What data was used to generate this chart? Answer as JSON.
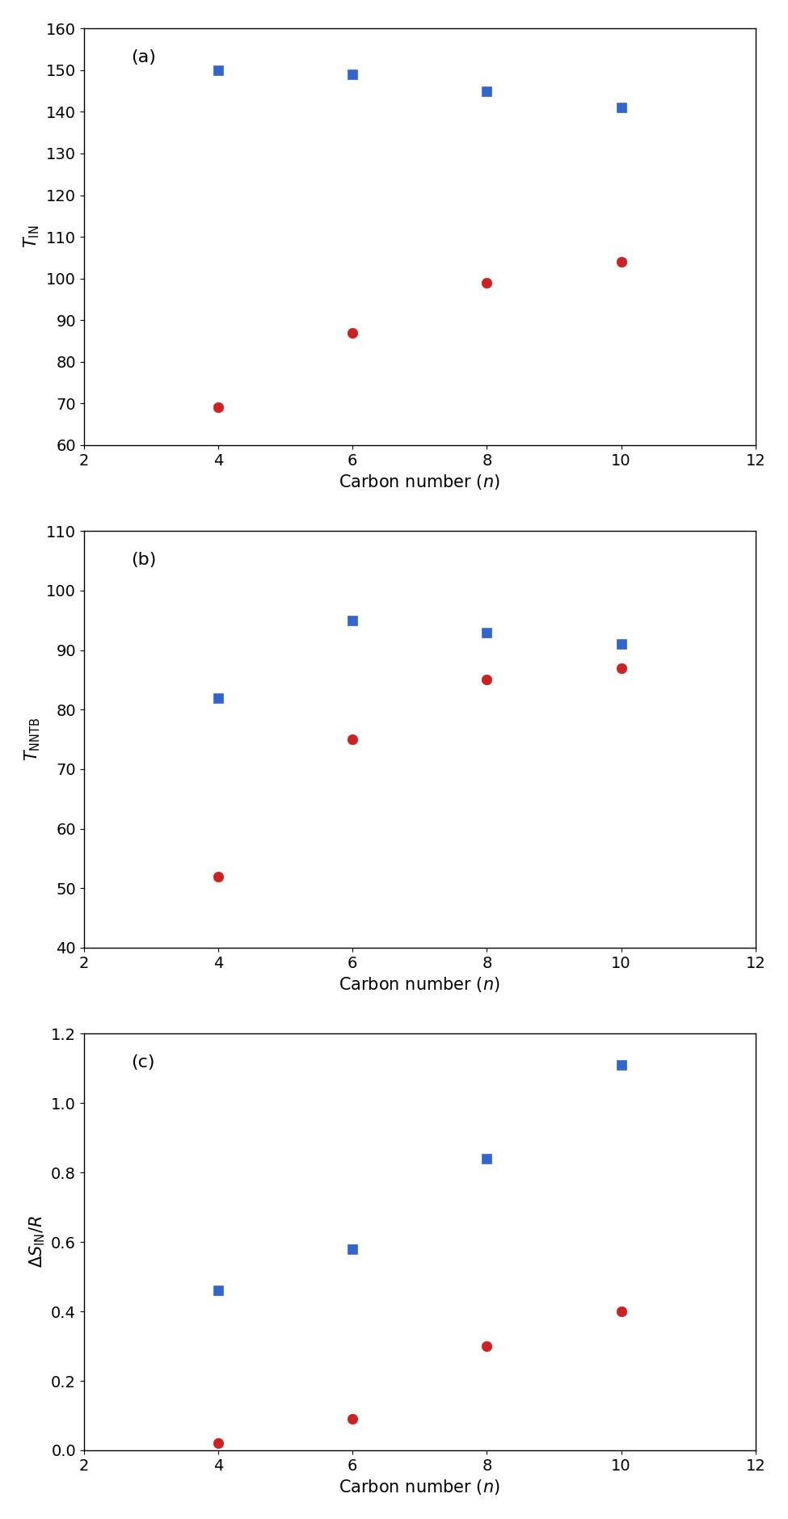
{
  "panel_a": {
    "label": "(a)",
    "ylabel": "$T_{\\mathrm{IN}}$",
    "ylim": [
      60,
      160
    ],
    "yticks": [
      60,
      70,
      80,
      90,
      100,
      110,
      120,
      130,
      140,
      150,
      160
    ],
    "blue_x": [
      4,
      6,
      8,
      10
    ],
    "blue_y": [
      150,
      149,
      145,
      141
    ],
    "red_x": [
      4,
      6,
      8,
      10
    ],
    "red_y": [
      69,
      87,
      99,
      104
    ]
  },
  "panel_b": {
    "label": "(b)",
    "ylabel": "$T_{\\mathrm{NNTB}}$",
    "ylim": [
      40,
      110
    ],
    "yticks": [
      40,
      50,
      60,
      70,
      80,
      90,
      100,
      110
    ],
    "blue_x": [
      4,
      6,
      8,
      10
    ],
    "blue_y": [
      82,
      95,
      93,
      91
    ],
    "red_x": [
      4,
      6,
      8,
      10
    ],
    "red_y": [
      52,
      75,
      85,
      87
    ]
  },
  "panel_c": {
    "label": "(c)",
    "ylabel": "$\\Delta S_{\\mathrm{IN}}/R$",
    "ylim": [
      0.0,
      1.2
    ],
    "yticks": [
      0.0,
      0.2,
      0.4,
      0.6,
      0.8,
      1.0,
      1.2
    ],
    "blue_x": [
      4,
      6,
      8,
      10
    ],
    "blue_y": [
      0.46,
      0.58,
      0.84,
      1.11
    ],
    "red_x": [
      4,
      6,
      8,
      10
    ],
    "red_y": [
      0.02,
      0.09,
      0.3,
      0.4
    ]
  },
  "xlabel": "Carbon number ($n$)",
  "xlim": [
    2,
    12
  ],
  "xticks": [
    2,
    4,
    6,
    8,
    10,
    12
  ],
  "blue_color": "#3366cc",
  "red_color": "#cc2222",
  "marker_blue": "s",
  "marker_red": "o",
  "marker_size": 9,
  "label_fontsize": 15,
  "tick_fontsize": 14,
  "panel_label_fontsize": 16,
  "figsize": [
    9.75,
    18.8
  ],
  "dpi": 100
}
